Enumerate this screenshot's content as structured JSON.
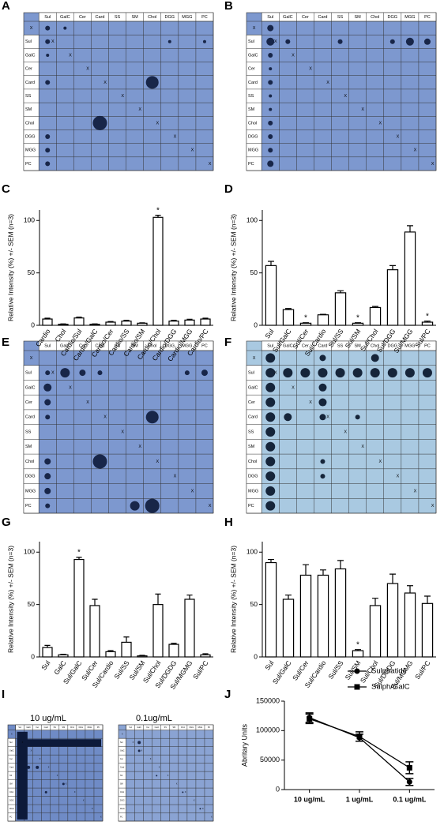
{
  "panel_labels": [
    "A",
    "B",
    "C",
    "D",
    "E",
    "F",
    "G",
    "H",
    "I",
    "J"
  ],
  "blot": {
    "labels": [
      "Sul",
      "GalC",
      "Cer",
      "Card",
      "SS",
      "SM",
      "Chol",
      "DGG",
      "MGG",
      "PC"
    ],
    "cross": "X"
  },
  "panel_i_titles": [
    "10 ug/mL",
    "0.1ug/mL"
  ],
  "chart_data": [
    {
      "type": "bar",
      "ylabel": "Relative Intensity (%) +/- SEM (n=3)",
      "categories": [
        "Cardio",
        "Chol",
        "Cardio/Sul",
        "Cardio/GalC",
        "Cardio/Cer",
        "Cardio/SS",
        "Cardio/SM",
        "Cardio/Chol",
        "Cardio/DGG",
        "Cardio/MGG",
        "Cardio/PC"
      ],
      "values": [
        6,
        1,
        7,
        1,
        3,
        4,
        2,
        103,
        4,
        5,
        6
      ],
      "errors": [
        0.8,
        0.3,
        0.8,
        0.3,
        0.6,
        0.8,
        0.4,
        2,
        0.8,
        0.8,
        0.8
      ],
      "annotations": [
        {
          "text": "*",
          "category": "Cardio/Chol"
        }
      ],
      "ylim": [
        0,
        110
      ],
      "yticks": [
        0,
        50,
        100
      ],
      "color": "#ffffff"
    },
    {
      "type": "bar",
      "ylabel": "Relative Intensity (%) +/- SEM (n=3)",
      "categories": [
        "Sul",
        "Sul/GalC",
        "Sul/Cer",
        "Sul/Cardio",
        "Sul/SS",
        "Sul/SM",
        "Sul/Chol",
        "Sul/DGG",
        "Sul/MGG",
        "Sul/PC"
      ],
      "values": [
        57,
        15,
        2,
        10,
        31,
        2,
        17,
        53,
        89,
        3
      ],
      "errors": [
        4,
        1,
        0.5,
        0.5,
        2,
        0.5,
        1,
        4,
        6,
        1
      ],
      "annotations": [
        {
          "text": "*",
          "category": "Sul/Cer"
        },
        {
          "text": "*",
          "category": "Sul/SM"
        },
        {
          "text": "*",
          "category": "Sul/PC"
        }
      ],
      "ylim": [
        0,
        110
      ],
      "yticks": [
        0,
        50,
        100
      ],
      "color": "#ffffff"
    },
    {
      "type": "bar",
      "ylabel": "Relative Intensity (%) +/- SEM (n=3)",
      "categories": [
        "Sul",
        "GalC",
        "Sul/GalC",
        "Sul/Cer",
        "Sul/Cardio",
        "Sul/SS",
        "Sul/SM",
        "Sul/Chol",
        "Sul/DGDG",
        "Sul/MGMG",
        "Sul/PC"
      ],
      "values": [
        9,
        2,
        93,
        49,
        5,
        14,
        1,
        50,
        12,
        55,
        2
      ],
      "errors": [
        2,
        0.5,
        2,
        6,
        1,
        5,
        0.5,
        10,
        1,
        4,
        1
      ],
      "annotations": [
        {
          "text": "*",
          "category": "Sul/GalC"
        }
      ],
      "ylim": [
        0,
        110
      ],
      "yticks": [
        0,
        50,
        100
      ],
      "color": "#ffffff"
    },
    {
      "type": "bar",
      "ylabel": "Relative Intensity (%) +/- SEM (n=3)",
      "categories": [
        "Sul",
        "Sul/GalC",
        "Sul/Cer",
        "Sul/Cardio",
        "Sul/SS",
        "Sul/SM",
        "Sul/Chol",
        "Sul/DGDG",
        "Sul/MGMG",
        "Sul/PC"
      ],
      "values": [
        90,
        55,
        78,
        78,
        84,
        6,
        49,
        70,
        61,
        51
      ],
      "errors": [
        3,
        4,
        10,
        5,
        8,
        1,
        7,
        9,
        7,
        7
      ],
      "annotations": [
        {
          "text": "*",
          "category": "Sul/SM"
        }
      ],
      "ylim": [
        0,
        110
      ],
      "yticks": [
        0,
        50,
        100
      ],
      "color": "#ffffff"
    },
    {
      "type": "line",
      "ylabel": "Abritary Units",
      "categories": [
        "10 ug/mL",
        "1 ug/mL",
        "0.1 ug/mL"
      ],
      "series": [
        {
          "name": "Sulphatide",
          "marker": "circle",
          "color": "#000000",
          "values": [
            122000,
            88000,
            13000
          ],
          "errors": [
            8000,
            6000,
            6000
          ]
        },
        {
          "name": "Sulph/GalC",
          "marker": "square",
          "color": "#000000",
          "values": [
            120000,
            90000,
            37000
          ],
          "errors": [
            8000,
            8000,
            10000
          ]
        }
      ],
      "ylim": [
        0,
        150000
      ],
      "yticks": [
        0,
        50000,
        100000,
        150000
      ],
      "legend": "upper right"
    }
  ]
}
